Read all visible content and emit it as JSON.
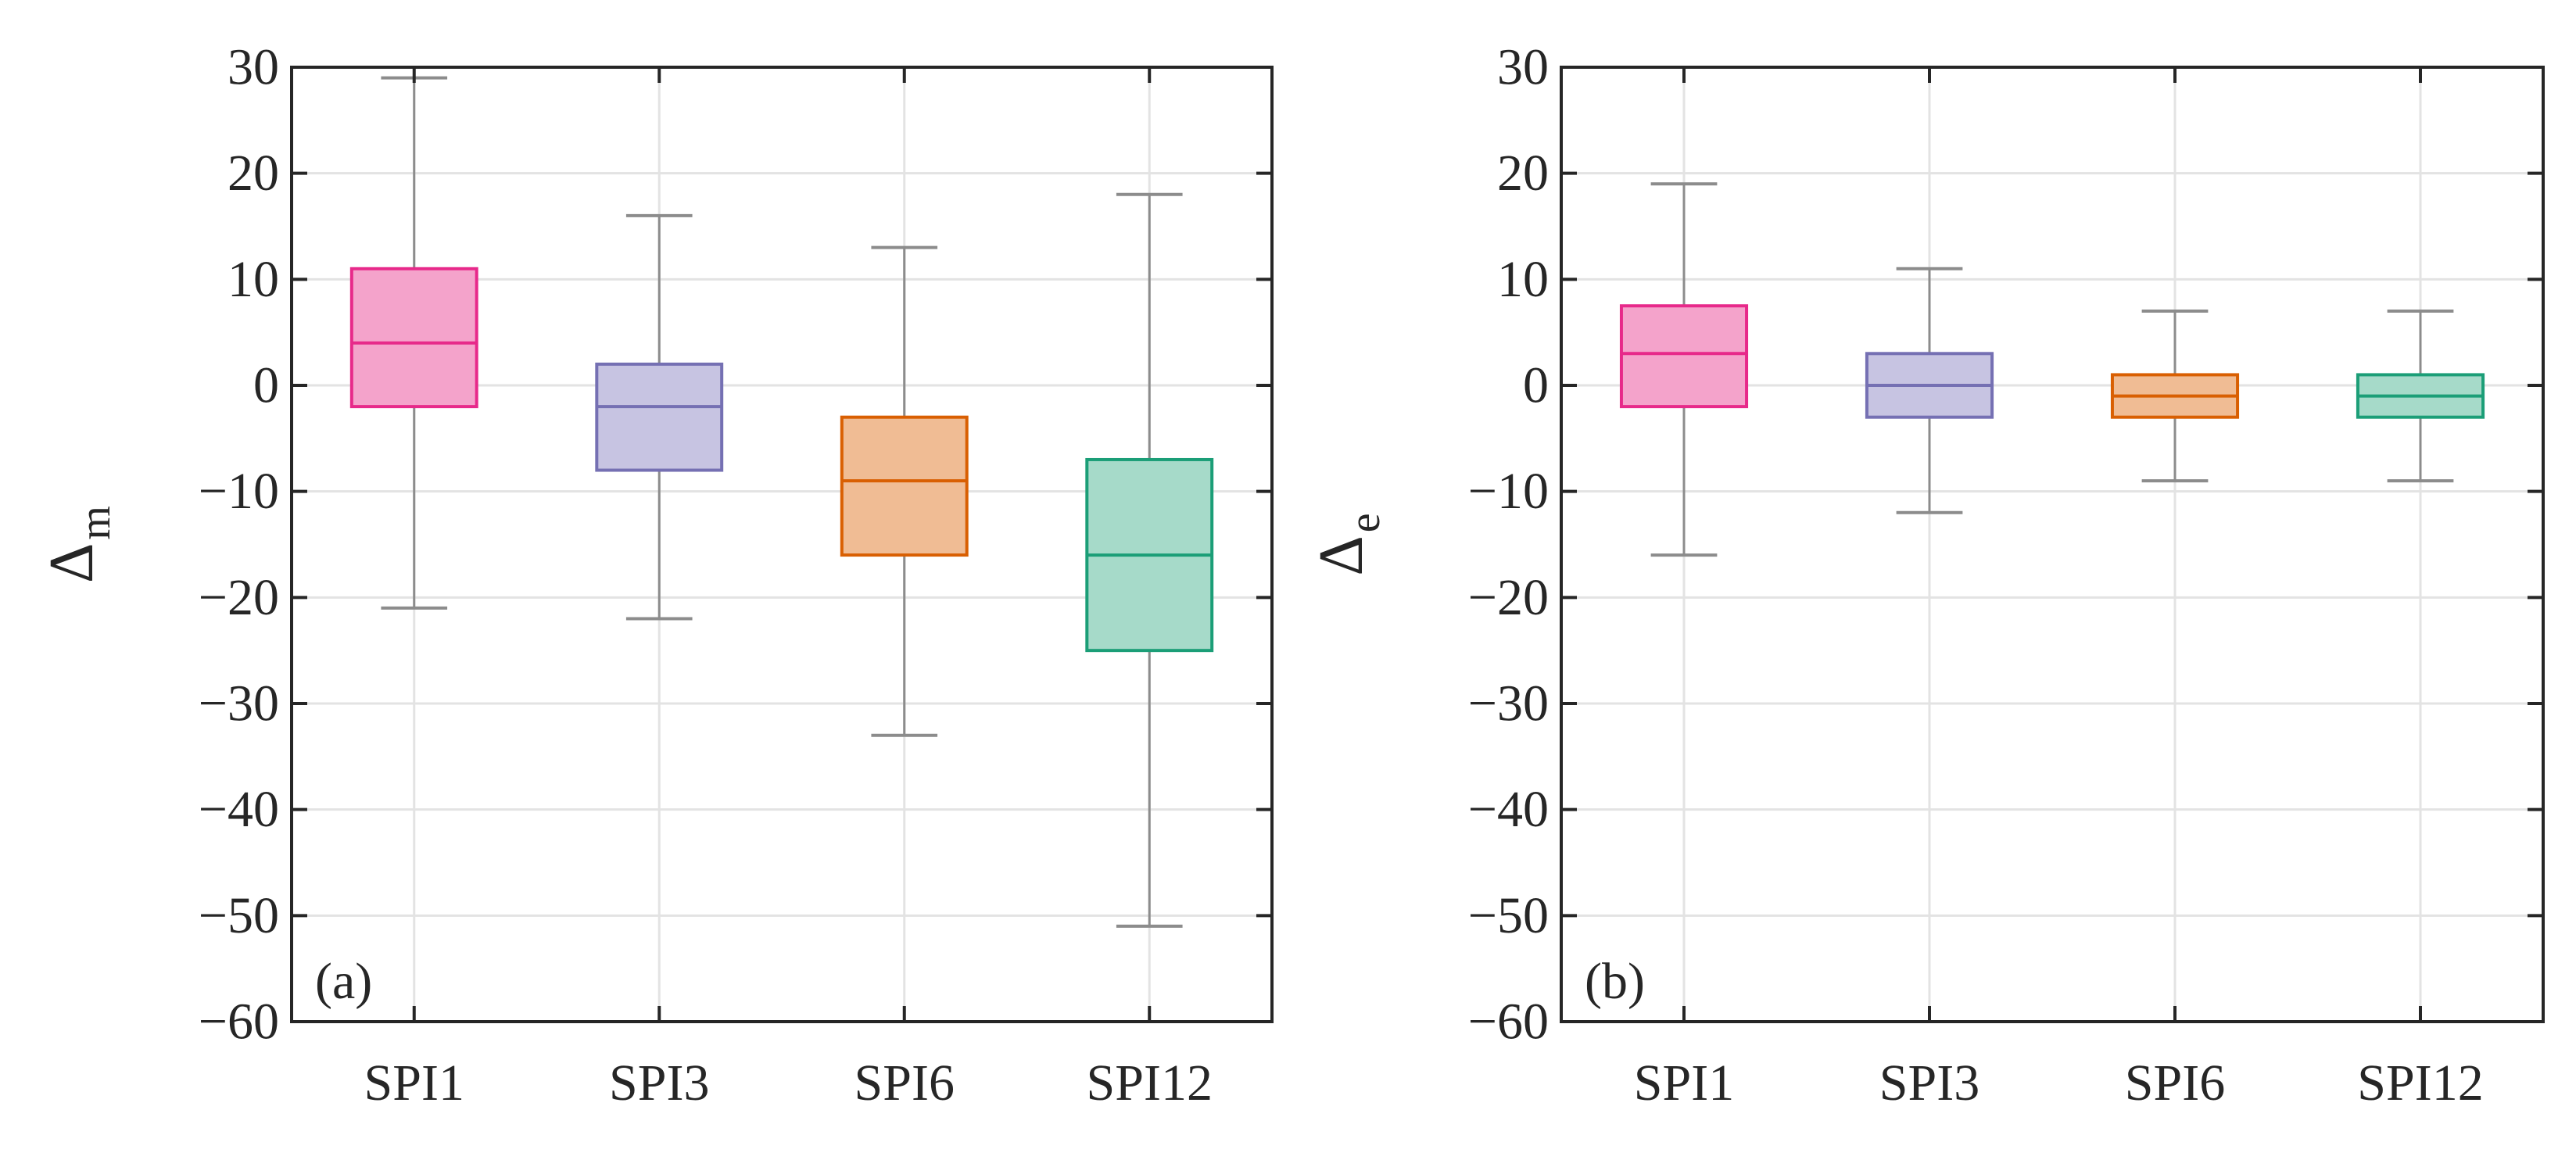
{
  "chart_data": [
    {
      "type": "boxplot",
      "panel_label": "(a)",
      "ylabel_main": "Δ",
      "ylabel_sub": "m",
      "categories": [
        "SPI1",
        "SPI3",
        "SPI6",
        "SPI12"
      ],
      "ylim": [
        -60,
        30
      ],
      "yticks": [
        30,
        20,
        10,
        0,
        -10,
        -20,
        -30,
        -40,
        -50,
        -60
      ],
      "ytick_labels": [
        "30",
        "20",
        "10",
        "0",
        "−10",
        "−20",
        "−30",
        "−40",
        "−50",
        "−60"
      ],
      "grid": true,
      "boxes": [
        {
          "whisker_low": -21,
          "q1": -2,
          "median": 4,
          "q3": 11,
          "whisker_high": 29
        },
        {
          "whisker_low": -22,
          "q1": -8,
          "median": -2,
          "q3": 2,
          "whisker_high": 16
        },
        {
          "whisker_low": -33,
          "q1": -16,
          "median": -9,
          "q3": -3,
          "whisker_high": 13
        },
        {
          "whisker_low": -51,
          "q1": -25,
          "median": -16,
          "q3": -7,
          "whisker_high": 18
        }
      ]
    },
    {
      "type": "boxplot",
      "panel_label": "(b)",
      "ylabel_main": "Δ",
      "ylabel_sub": "e",
      "categories": [
        "SPI1",
        "SPI3",
        "SPI6",
        "SPI12"
      ],
      "ylim": [
        -60,
        30
      ],
      "yticks": [
        30,
        20,
        10,
        0,
        -10,
        -20,
        -30,
        -40,
        -50,
        -60
      ],
      "ytick_labels": [
        "30",
        "20",
        "10",
        "0",
        "−10",
        "−20",
        "−30",
        "−40",
        "−50",
        "−60"
      ],
      "grid": true,
      "boxes": [
        {
          "whisker_low": -16,
          "q1": -2,
          "median": 3,
          "q3": 7.5,
          "whisker_high": 19
        },
        {
          "whisker_low": -12,
          "q1": -3,
          "median": 0,
          "q3": 3,
          "whisker_high": 11
        },
        {
          "whisker_low": -9,
          "q1": -3,
          "median": -1,
          "q3": 1,
          "whisker_high": 7
        },
        {
          "whisker_low": -9,
          "q1": -3,
          "median": -1,
          "q3": 1,
          "whisker_high": 7
        }
      ]
    }
  ],
  "colors": {
    "series_edge": [
      "#e7298a",
      "#7570b3",
      "#d95f02",
      "#1b9e77"
    ],
    "series_fill": [
      "#f4a3cb",
      "#c7c4e2",
      "#f0bc94",
      "#a6dac9"
    ],
    "whisker": "#8c8c8c",
    "grid": "#e3e3e3",
    "axis": "#262626"
  }
}
